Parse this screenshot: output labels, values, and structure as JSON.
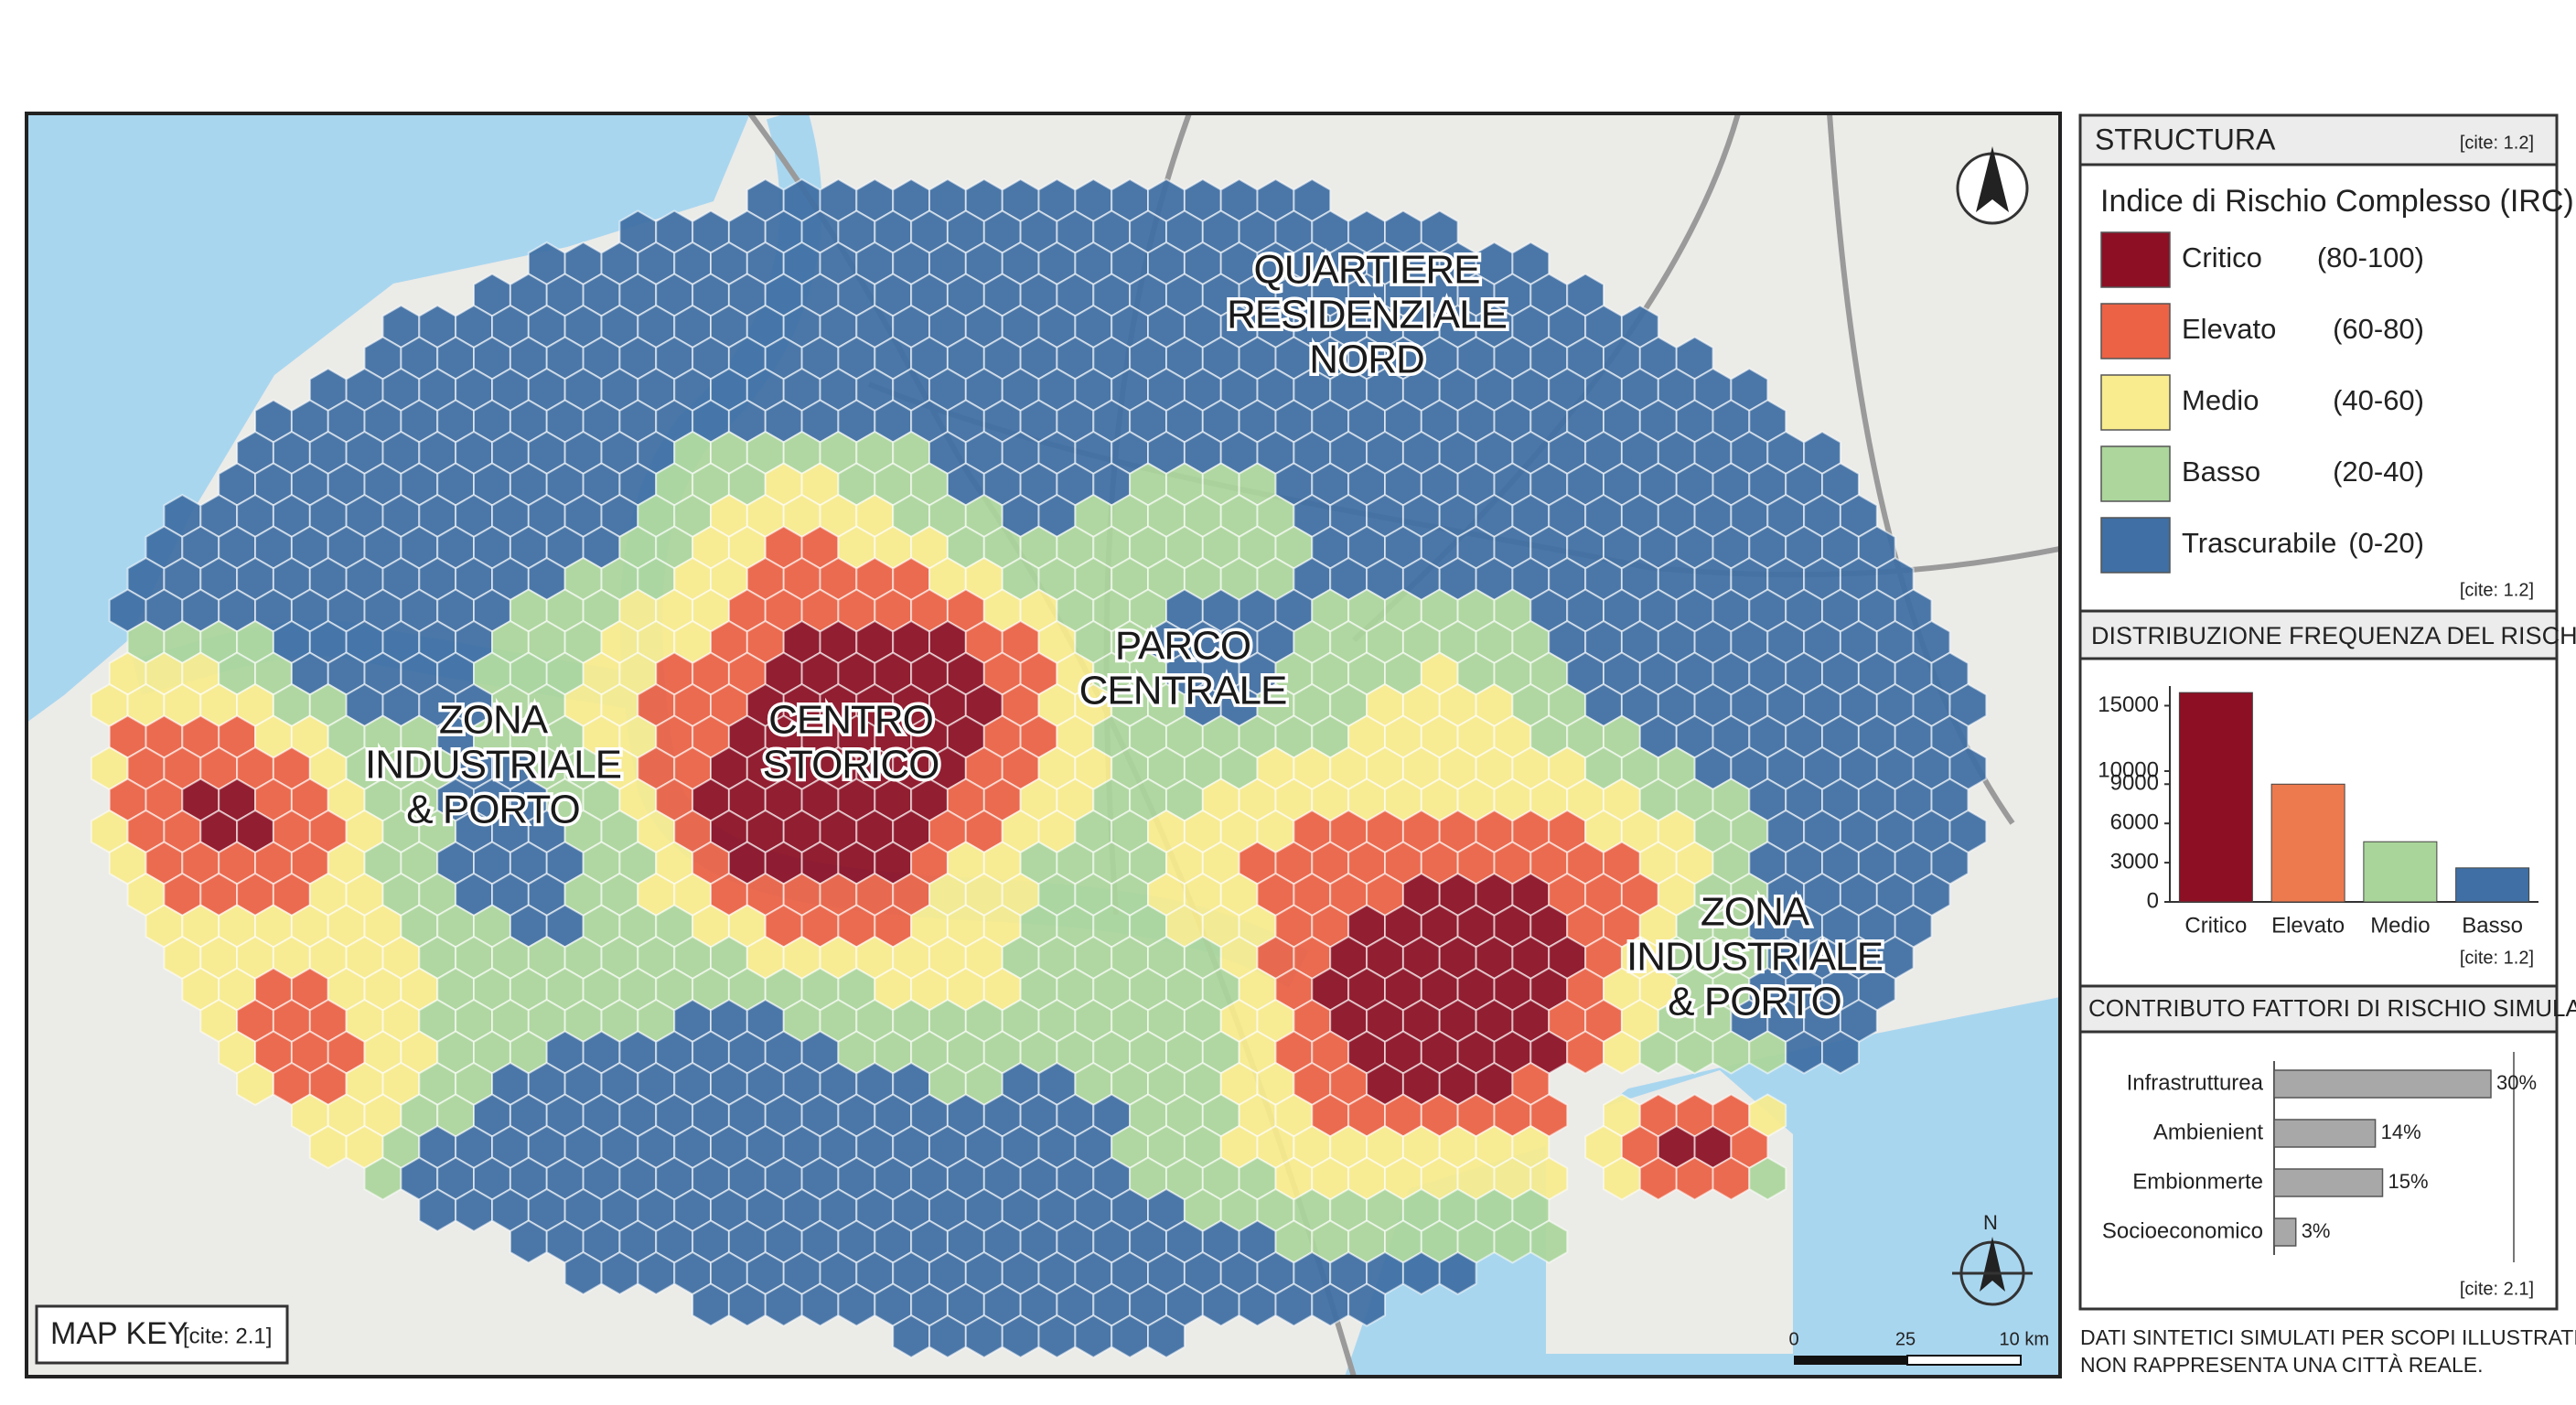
{
  "map": {
    "labels": [
      {
        "lines": [
          "QUARTIERE",
          "RESIDENZIALE",
          "NORD"
        ]
      },
      {
        "lines": [
          "PARCO",
          "CENTRALE"
        ]
      },
      {
        "lines": [
          "CENTRO",
          "STORICO"
        ]
      },
      {
        "lines": [
          "ZONA",
          "INDUSTRIALE",
          "& PORTO"
        ]
      },
      {
        "lines": [
          "ZONA",
          "INDUSTRIALE",
          "& PORTO"
        ]
      }
    ],
    "north": "N",
    "scale": [
      "0",
      "25",
      "10 km"
    ],
    "map_key": {
      "title": "MAP KEY",
      "cite": "[cite: 2.1]"
    }
  },
  "legend": {
    "title": "STRUCTURA",
    "cite": "[cite: 1.2]",
    "subtitle": "Indice di Rischio Complesso (IRC)",
    "items": [
      {
        "name": "Critico",
        "range": "(80-100)",
        "color": "#8c0f24"
      },
      {
        "name": "Elevato",
        "range": "(60-80)",
        "color": "#ec6245"
      },
      {
        "name": "Medio",
        "range": "(40-60)",
        "color": "#f8ec8e"
      },
      {
        "name": "Basso",
        "range": "(20-40)",
        "color": "#acd69c"
      },
      {
        "name": "Trascurabile",
        "range": "(0-20)",
        "color": "#3f6fa4"
      }
    ],
    "cite_bottom": "[cite: 1.2]"
  },
  "chart_data": [
    {
      "type": "bar",
      "title": "DISTRIBUZIONE FREQUENZA DEL RISCHIO",
      "categories": [
        "Critico",
        "Elevato",
        "Medio",
        "Basso"
      ],
      "values": [
        16000,
        9000,
        4600,
        2600
      ],
      "colors": [
        "#8c0f24",
        "#ec7a4e",
        "#a9d59a",
        "#3f6fa4"
      ],
      "ylim": [
        0,
        16500
      ],
      "yticks": [
        0,
        3000,
        6000,
        9000,
        10000,
        15000
      ],
      "note": "[cite: 1.2]"
    },
    {
      "type": "hbar",
      "title": "CONTRIBUTO FATTORI DI RISCHIO SIMULATI",
      "categories": [
        "Infrastrutturea",
        "Ambienient",
        "Embionmerte",
        "Socioeconomico"
      ],
      "values": [
        30,
        14,
        15,
        3
      ],
      "value_labels": [
        "30%",
        "14%",
        "15%",
        "3%"
      ],
      "color": "#a8a8a8",
      "xlim": [
        0,
        30
      ],
      "note": "[cite: 2.1]"
    }
  ],
  "footer": [
    "DATI SINTETICI SIMULATI PER SCOPI ILLUSTRATIVI.",
    "NON RAPPRESENTA UNA CITTÀ REALE."
  ]
}
